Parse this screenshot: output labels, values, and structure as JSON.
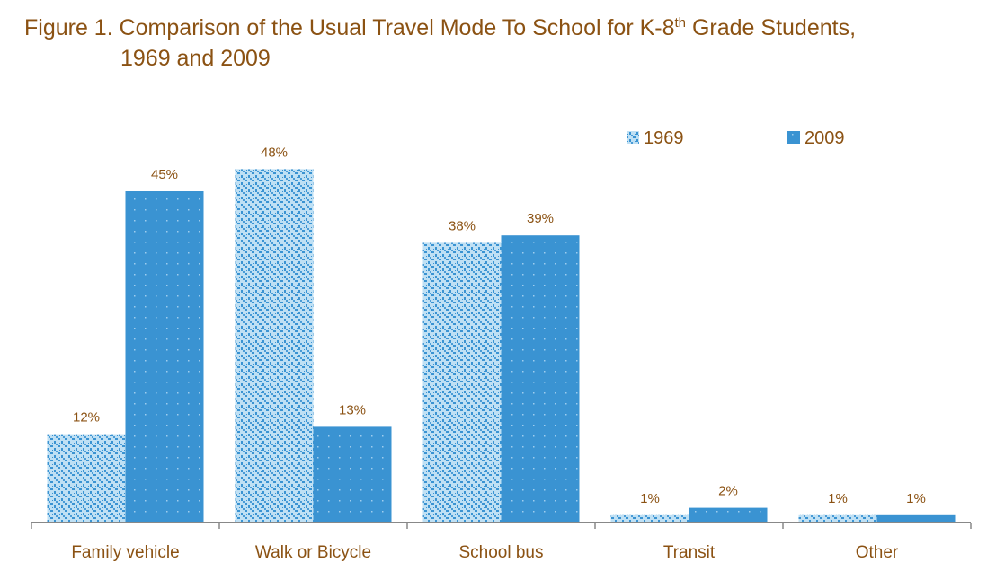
{
  "title": {
    "line1_prefix": "Figure 1. Comparison of the Usual Travel Mode To School for K-8",
    "line1_sup": "th",
    "line1_suffix": " Grade Students,",
    "line2": "1969 and 2009"
  },
  "colors": {
    "title": "#8b5213",
    "series_1969_base": "#bfe0f4",
    "series_1969_dots": "#3a93d2",
    "series_2009": "#3a93d2",
    "axis": "#888888"
  },
  "chart_data": {
    "type": "bar",
    "title": "Figure 1. Comparison of the Usual Travel Mode To School for K-8th Grade Students, 1969 and 2009",
    "xlabel": "",
    "ylabel": "",
    "ylim": [
      0,
      50
    ],
    "grid": false,
    "legend_position": "top-right",
    "categories": [
      "Family vehicle",
      "Walk or Bicycle",
      "School bus",
      "Transit",
      "Other"
    ],
    "series": [
      {
        "name": "1969",
        "values": [
          12,
          48,
          38,
          1,
          1
        ],
        "labels": [
          "12%",
          "48%",
          "38%",
          "1%",
          "1%"
        ]
      },
      {
        "name": "2009",
        "values": [
          45,
          13,
          39,
          2,
          1
        ],
        "labels": [
          "45%",
          "13%",
          "39%",
          "2%",
          "1%"
        ]
      }
    ]
  }
}
